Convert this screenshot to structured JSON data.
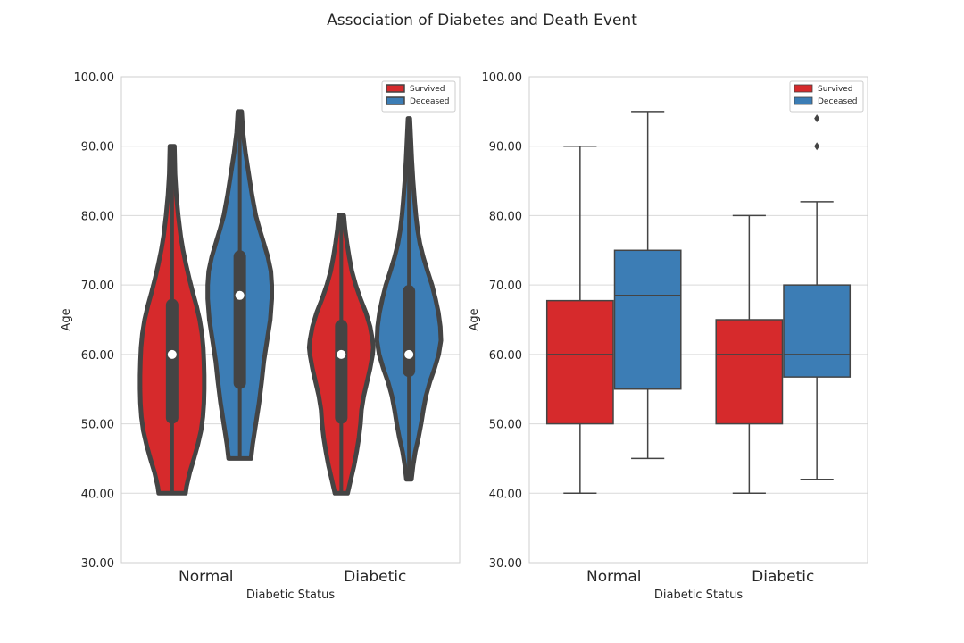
{
  "figure": {
    "title": "Association of Diabetes and Death Event"
  },
  "chart_data": [
    {
      "type": "violin",
      "xlabel": "Diabetic Status",
      "ylabel": "Age",
      "ylim": [
        30,
        100
      ],
      "yticks": [
        "30.00",
        "40.00",
        "50.00",
        "60.00",
        "70.00",
        "80.00",
        "90.00",
        "100.00"
      ],
      "categories": [
        "Normal",
        "Diabetic"
      ],
      "legend_position": "top-right",
      "grid": true,
      "series": [
        {
          "name": "Survived",
          "color": "#d62a2c",
          "groups": [
            {
              "min": 40,
              "q1": 50,
              "median": 60,
              "q3": 68,
              "max": 90,
              "profile": [
                [
                  40,
                  0.42
                ],
                [
                  41,
                  0.45
                ],
                [
                  43,
                  0.55
                ],
                [
                  45,
                  0.68
                ],
                [
                  47,
                  0.8
                ],
                [
                  49,
                  0.9
                ],
                [
                  51,
                  0.96
                ],
                [
                  53,
                  0.99
                ],
                [
                  55,
                  1.0
                ],
                [
                  57,
                  1.0
                ],
                [
                  59,
                  0.99
                ],
                [
                  61,
                  0.97
                ],
                [
                  63,
                  0.93
                ],
                [
                  65,
                  0.86
                ],
                [
                  67,
                  0.76
                ],
                [
                  69,
                  0.64
                ],
                [
                  71,
                  0.53
                ],
                [
                  73,
                  0.43
                ],
                [
                  75,
                  0.34
                ],
                [
                  77,
                  0.27
                ],
                [
                  80,
                  0.19
                ],
                [
                  83,
                  0.13
                ],
                [
                  86,
                  0.09
                ],
                [
                  90,
                  0.07
                ]
              ]
            },
            {
              "min": 40,
              "q1": 50,
              "median": 60,
              "q3": 65,
              "max": 80,
              "profile": [
                [
                  40,
                  0.2
                ],
                [
                  42,
                  0.3
                ],
                [
                  44,
                  0.4
                ],
                [
                  46,
                  0.48
                ],
                [
                  48,
                  0.55
                ],
                [
                  50,
                  0.6
                ],
                [
                  52,
                  0.63
                ],
                [
                  54,
                  0.7
                ],
                [
                  56,
                  0.8
                ],
                [
                  58,
                  0.9
                ],
                [
                  60,
                  0.98
                ],
                [
                  61,
                  1.0
                ],
                [
                  62,
                  0.98
                ],
                [
                  64,
                  0.9
                ],
                [
                  66,
                  0.77
                ],
                [
                  68,
                  0.6
                ],
                [
                  70,
                  0.45
                ],
                [
                  72,
                  0.33
                ],
                [
                  74,
                  0.25
                ],
                [
                  76,
                  0.18
                ],
                [
                  78,
                  0.12
                ],
                [
                  80,
                  0.08
                ]
              ]
            }
          ]
        },
        {
          "name": "Deceased",
          "color": "#3c7db5",
          "groups": [
            {
              "min": 45,
              "q1": 55,
              "median": 68.5,
              "q3": 75,
              "max": 95,
              "profile": [
                [
                  45,
                  0.35
                ],
                [
                  47,
                  0.4
                ],
                [
                  50,
                  0.5
                ],
                [
                  53,
                  0.6
                ],
                [
                  56,
                  0.68
                ],
                [
                  59,
                  0.75
                ],
                [
                  62,
                  0.85
                ],
                [
                  65,
                  0.95
                ],
                [
                  68,
                  1.0
                ],
                [
                  70,
                  1.0
                ],
                [
                  72,
                  0.97
                ],
                [
                  74,
                  0.88
                ],
                [
                  76,
                  0.75
                ],
                [
                  78,
                  0.62
                ],
                [
                  80,
                  0.5
                ],
                [
                  83,
                  0.38
                ],
                [
                  86,
                  0.28
                ],
                [
                  89,
                  0.18
                ],
                [
                  92,
                  0.1
                ],
                [
                  95,
                  0.06
                ]
              ]
            },
            {
              "min": 42,
              "q1": 56.75,
              "median": 60,
              "q3": 70,
              "max": 94,
              "profile": [
                [
                  42,
                  0.08
                ],
                [
                  44,
                  0.13
                ],
                [
                  46,
                  0.2
                ],
                [
                  48,
                  0.3
                ],
                [
                  50,
                  0.38
                ],
                [
                  52,
                  0.45
                ],
                [
                  54,
                  0.53
                ],
                [
                  56,
                  0.65
                ],
                [
                  58,
                  0.8
                ],
                [
                  60,
                  0.93
                ],
                [
                  62,
                  1.0
                ],
                [
                  64,
                  0.98
                ],
                [
                  66,
                  0.92
                ],
                [
                  68,
                  0.83
                ],
                [
                  70,
                  0.72
                ],
                [
                  72,
                  0.58
                ],
                [
                  74,
                  0.45
                ],
                [
                  76,
                  0.34
                ],
                [
                  78,
                  0.27
                ],
                [
                  80,
                  0.22
                ],
                [
                  82,
                  0.18
                ],
                [
                  85,
                  0.13
                ],
                [
                  88,
                  0.09
                ],
                [
                  91,
                  0.06
                ],
                [
                  94,
                  0.03
                ]
              ]
            }
          ]
        }
      ]
    },
    {
      "type": "box",
      "xlabel": "Diabetic Status",
      "ylabel": "Age",
      "ylim": [
        30,
        100
      ],
      "yticks": [
        "30.00",
        "40.00",
        "50.00",
        "60.00",
        "70.00",
        "80.00",
        "90.00",
        "100.00"
      ],
      "categories": [
        "Normal",
        "Diabetic"
      ],
      "legend_position": "top-right",
      "grid": true,
      "series": [
        {
          "name": "Survived",
          "color": "#d62a2c",
          "groups": [
            {
              "whisker_low": 40,
              "q1": 50,
              "median": 60,
              "q3": 67.75,
              "whisker_high": 90,
              "outliers": []
            },
            {
              "whisker_low": 40,
              "q1": 50,
              "median": 60,
              "q3": 65,
              "whisker_high": 80,
              "outliers": []
            }
          ]
        },
        {
          "name": "Deceased",
          "color": "#3c7db5",
          "groups": [
            {
              "whisker_low": 45,
              "q1": 55,
              "median": 68.5,
              "q3": 75,
              "whisker_high": 95,
              "outliers": []
            },
            {
              "whisker_low": 42,
              "q1": 56.75,
              "median": 60,
              "q3": 70,
              "whisker_high": 82,
              "outliers": [
                90,
                94
              ]
            }
          ]
        }
      ]
    }
  ]
}
